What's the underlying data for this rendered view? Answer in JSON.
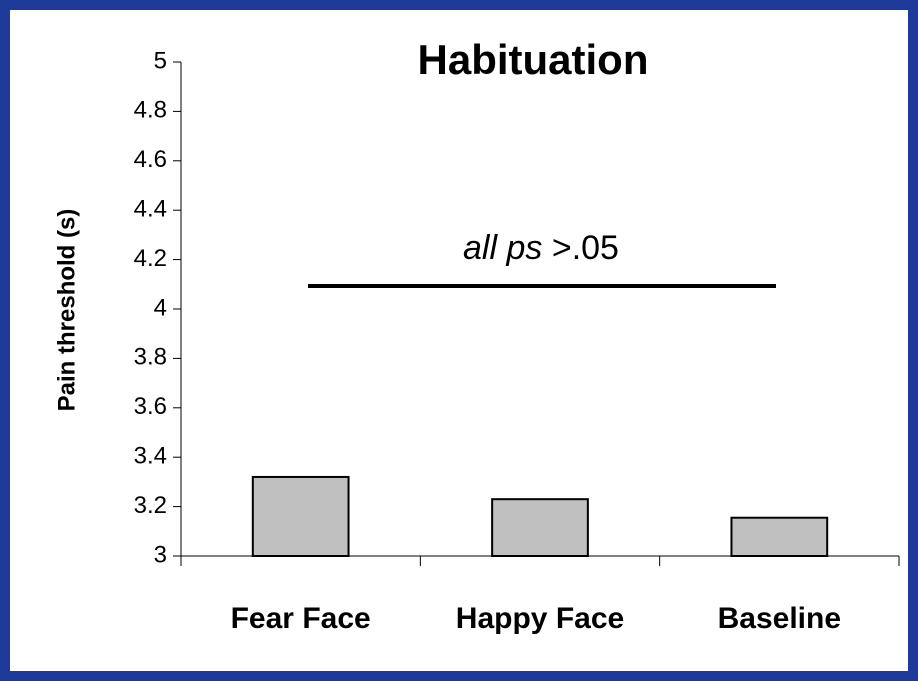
{
  "chart_data": {
    "type": "bar",
    "title": "Habituation",
    "y_label": "Pain threshold (s)",
    "categories": [
      "Fear Face",
      "Happy Face",
      "Baseline"
    ],
    "values": [
      3.32,
      3.23,
      3.155
    ],
    "color": "#c0c0c0",
    "ylim": [
      3,
      5
    ],
    "yticks": [
      3,
      3.2,
      3.4,
      3.6,
      3.8,
      4,
      4.2,
      4.4,
      4.6,
      4.8,
      5
    ],
    "annotation": {
      "italic": "all ps",
      "text": " >.05"
    }
  }
}
